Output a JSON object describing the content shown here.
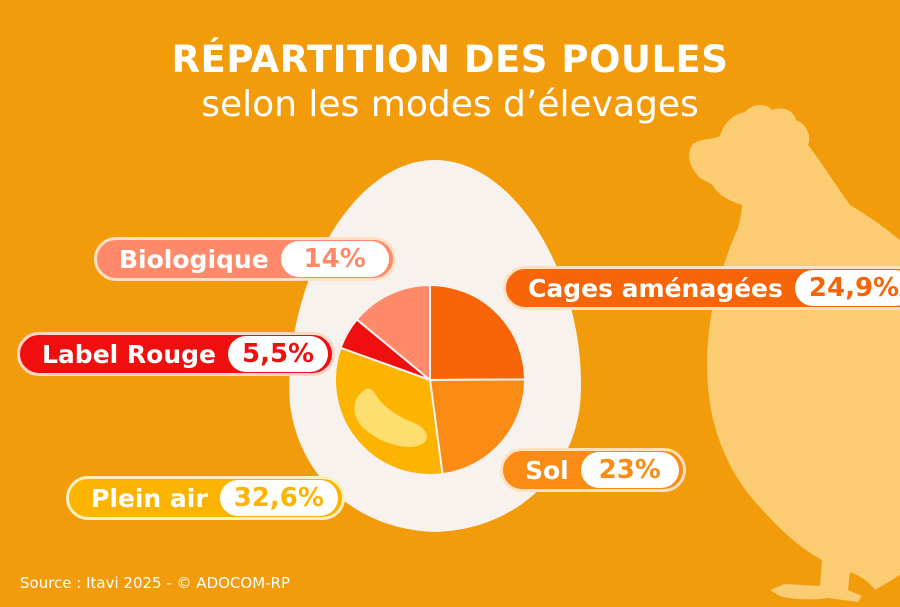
{
  "header": {
    "title": "RÉPARTITION DES POULES",
    "subtitle": "selon les modes d’élevages"
  },
  "colors": {
    "background": "#f29c0c",
    "cages_amenagees": "#f86509",
    "sol": "#fa8b15",
    "plein_air": "#fcb400",
    "label_rouge": "#f00f0f",
    "biologique": "#ff8a6b",
    "egg_white": "#f7f2ee",
    "hen_silhouette": "#fbcc72"
  },
  "chart_data": {
    "type": "pie",
    "title": "RÉPARTITION DES POULES",
    "subtitle": "selon les modes d’élevages",
    "slices": [
      {
        "name": "Cages aménagées",
        "value": 24.9,
        "label": "24,9%",
        "color": "#f86509"
      },
      {
        "name": "Sol",
        "value": 23,
        "label": "23%",
        "color": "#fa8b15"
      },
      {
        "name": "Plein air",
        "value": 32.6,
        "label": "32,6%",
        "color": "#fcb400"
      },
      {
        "name": "Label Rouge",
        "value": 5.5,
        "label": "5,5%",
        "color": "#f00f0f"
      },
      {
        "name": "Biologique",
        "value": 14,
        "label": "14%",
        "color": "#ff8a6b"
      }
    ]
  },
  "footer": {
    "source": "Source : Itavi 2025 - © ADOCOM-RP"
  }
}
